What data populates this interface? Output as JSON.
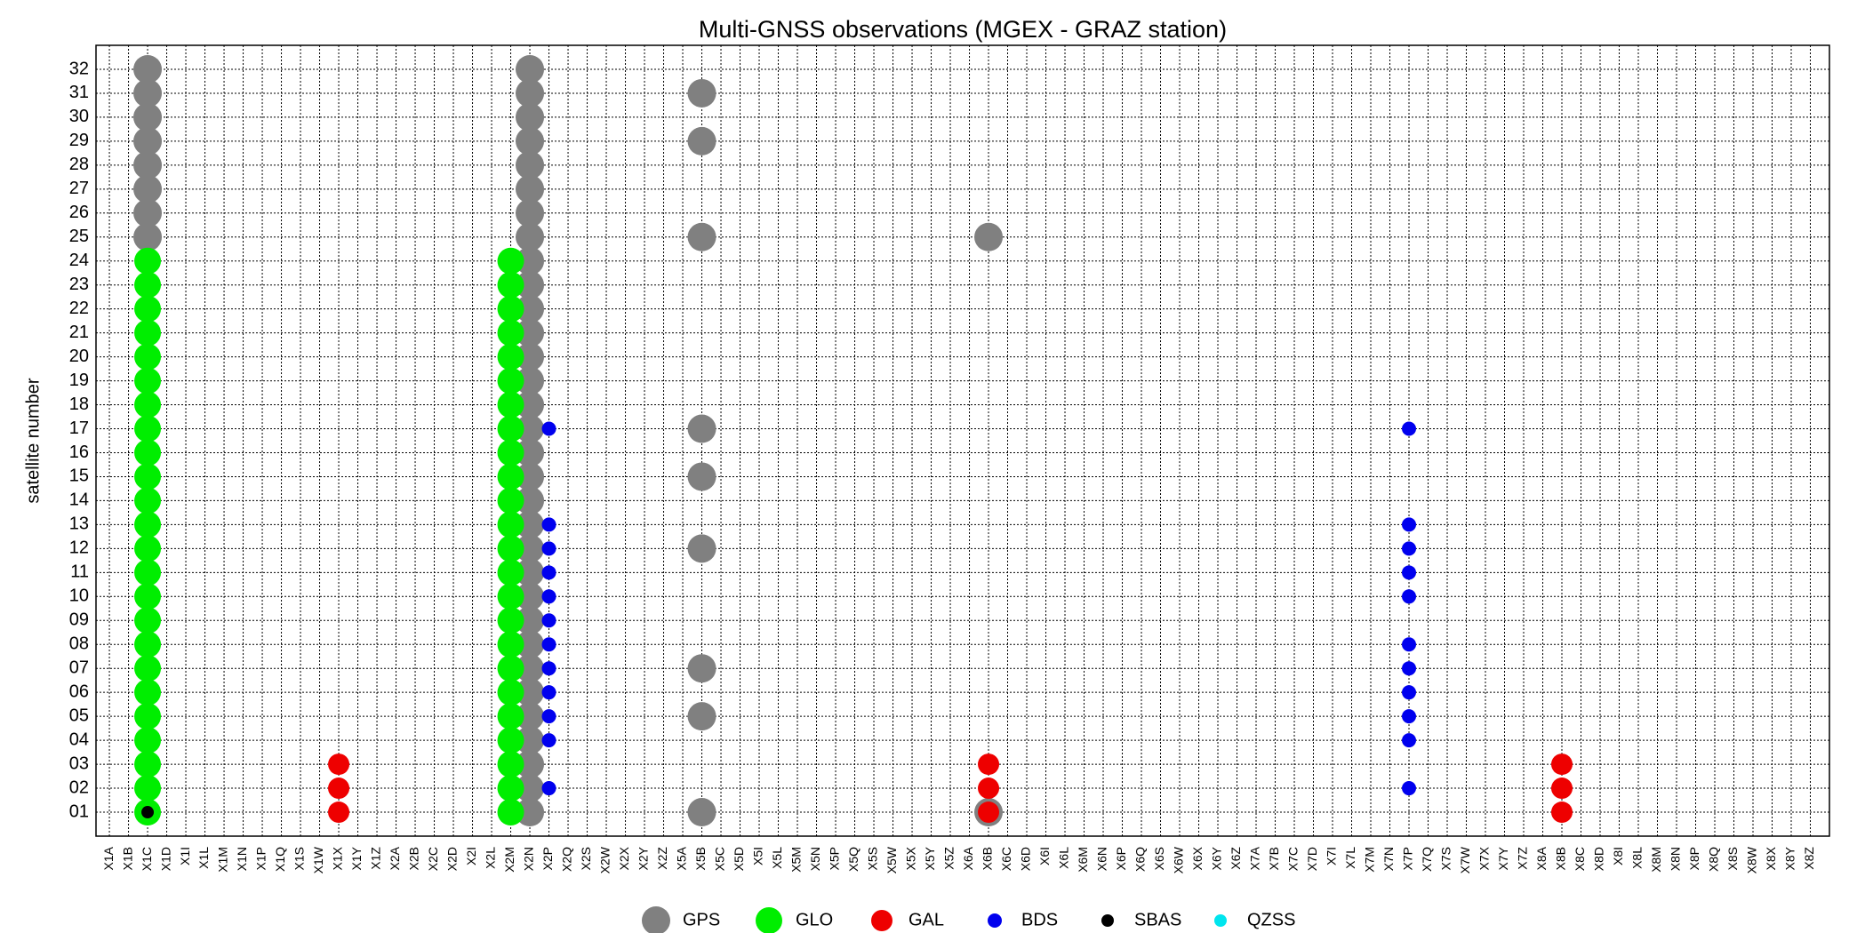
{
  "chart_data": {
    "type": "scatter",
    "title": "Multi-GNSS observations (MGEX - GRAZ station)",
    "y_label": "satellite number",
    "categories": [
      "X1A",
      "X1B",
      "X1C",
      "X1D",
      "X1I",
      "X1L",
      "X1M",
      "X1N",
      "X1P",
      "X1Q",
      "X1S",
      "X1W",
      "X1X",
      "X1Y",
      "X1Z",
      "X2A",
      "X2B",
      "X2C",
      "X2D",
      "X2I",
      "X2L",
      "X2M",
      "X2N",
      "X2P",
      "X2Q",
      "X2S",
      "X2W",
      "X2X",
      "X2Y",
      "X2Z",
      "X5A",
      "X5B",
      "X5C",
      "X5D",
      "X5I",
      "X5L",
      "X5M",
      "X5N",
      "X5P",
      "X5Q",
      "X5S",
      "X5W",
      "X5X",
      "X5Y",
      "X5Z",
      "X6A",
      "X6B",
      "X6C",
      "X6D",
      "X6I",
      "X6L",
      "X6M",
      "X6N",
      "X6P",
      "X6Q",
      "X6S",
      "X6W",
      "X6X",
      "X6Y",
      "X6Z",
      "X7A",
      "X7B",
      "X7C",
      "X7D",
      "X7I",
      "X7L",
      "X7M",
      "X7N",
      "X7P",
      "X7Q",
      "X7S",
      "X7W",
      "X7X",
      "X7Y",
      "X7Z",
      "X8A",
      "X8B",
      "X8C",
      "X8D",
      "X8I",
      "X8L",
      "X8M",
      "X8N",
      "X8P",
      "X8Q",
      "X8S",
      "X8W",
      "X8X",
      "X8Y",
      "X8Z"
    ],
    "ylim": [
      0,
      33
    ],
    "yticks": [
      {
        "value": 1,
        "label": "01"
      },
      {
        "value": 2,
        "label": "02"
      },
      {
        "value": 3,
        "label": "03"
      },
      {
        "value": 4,
        "label": "04"
      },
      {
        "value": 5,
        "label": "05"
      },
      {
        "value": 6,
        "label": "06"
      },
      {
        "value": 7,
        "label": "07"
      },
      {
        "value": 8,
        "label": "08"
      },
      {
        "value": 9,
        "label": "09"
      },
      10,
      11,
      12,
      13,
      14,
      15,
      16,
      17,
      18,
      19,
      20,
      21,
      22,
      23,
      24,
      25,
      26,
      27,
      28,
      29,
      30,
      31,
      32
    ],
    "grid": true,
    "legend": "bottom",
    "series": [
      {
        "name": "GPS",
        "color": "#808080",
        "x": [
          "X1C",
          "X1C",
          "X1C",
          "X1C",
          "X1C",
          "X1C",
          "X1C",
          "X1C",
          "X2N",
          "X2N",
          "X2N",
          "X2N",
          "X2N",
          "X2N",
          "X2N",
          "X2N",
          "X2N",
          "X2N",
          "X2N",
          "X2N",
          "X2N",
          "X2N",
          "X2N",
          "X2N",
          "X2N",
          "X2N",
          "X2N",
          "X2N",
          "X2N",
          "X2N",
          "X2N",
          "X2N",
          "X2N",
          "X2N",
          "X2N",
          "X2N",
          "X2N",
          "X2N",
          "X2N",
          "X2N",
          "X5B",
          "X5B",
          "X5B",
          "X5B",
          "X5B",
          "X5B",
          "X5B",
          "X5B",
          "X5B",
          "X6B",
          "X6B"
        ],
        "values": [
          25,
          26,
          27,
          28,
          29,
          30,
          31,
          32,
          1,
          2,
          3,
          4,
          5,
          6,
          7,
          8,
          9,
          10,
          11,
          12,
          13,
          14,
          15,
          16,
          17,
          18,
          19,
          20,
          21,
          22,
          23,
          24,
          25,
          26,
          27,
          28,
          29,
          30,
          31,
          32,
          1,
          5,
          7,
          12,
          15,
          17,
          25,
          29,
          31,
          1,
          25
        ]
      },
      {
        "name": "GLO",
        "color": "#00ee00",
        "x": [
          "X1C",
          "X1C",
          "X1C",
          "X1C",
          "X1C",
          "X1C",
          "X1C",
          "X1C",
          "X1C",
          "X1C",
          "X1C",
          "X1C",
          "X1C",
          "X1C",
          "X1C",
          "X1C",
          "X1C",
          "X1C",
          "X1C",
          "X1C",
          "X1C",
          "X1C",
          "X1C",
          "X1C",
          "X2M",
          "X2M",
          "X2M",
          "X2M",
          "X2M",
          "X2M",
          "X2M",
          "X2M",
          "X2M",
          "X2M",
          "X2M",
          "X2M",
          "X2M",
          "X2M",
          "X2M",
          "X2M",
          "X2M",
          "X2M",
          "X2M",
          "X2M",
          "X2M",
          "X2M",
          "X2M",
          "X2M"
        ],
        "values": [
          1,
          2,
          3,
          4,
          5,
          6,
          7,
          8,
          9,
          10,
          11,
          12,
          13,
          14,
          15,
          16,
          17,
          18,
          19,
          20,
          21,
          22,
          23,
          24,
          1,
          2,
          3,
          4,
          5,
          6,
          7,
          8,
          9,
          10,
          11,
          12,
          13,
          14,
          15,
          16,
          17,
          18,
          19,
          20,
          21,
          22,
          23,
          24
        ]
      },
      {
        "name": "GAL",
        "color": "#ee0000",
        "x": [
          "X1X",
          "X1X",
          "X1X",
          "X6B",
          "X6B",
          "X6B",
          "X8B",
          "X8B",
          "X8B"
        ],
        "values": [
          1,
          2,
          3,
          1,
          2,
          3,
          1,
          2,
          3
        ]
      },
      {
        "name": "BDS",
        "color": "#0000ee",
        "x": [
          "X2P",
          "X2P",
          "X2P",
          "X2P",
          "X2P",
          "X2P",
          "X2P",
          "X2P",
          "X2P",
          "X2P",
          "X2P",
          "X2P",
          "X7P",
          "X7P",
          "X7P",
          "X7P",
          "X7P",
          "X7P",
          "X7P",
          "X7P",
          "X7P",
          "X7P",
          "X7P"
        ],
        "values": [
          2,
          4,
          5,
          6,
          7,
          8,
          9,
          10,
          11,
          12,
          13,
          17,
          2,
          4,
          5,
          6,
          7,
          8,
          10,
          11,
          12,
          13,
          17
        ]
      },
      {
        "name": "SBAS",
        "color": "#000000",
        "x": [
          "X1C"
        ],
        "values": [
          1
        ]
      },
      {
        "name": "QZSS",
        "color": "#00e5ee",
        "x": [],
        "values": []
      }
    ]
  }
}
